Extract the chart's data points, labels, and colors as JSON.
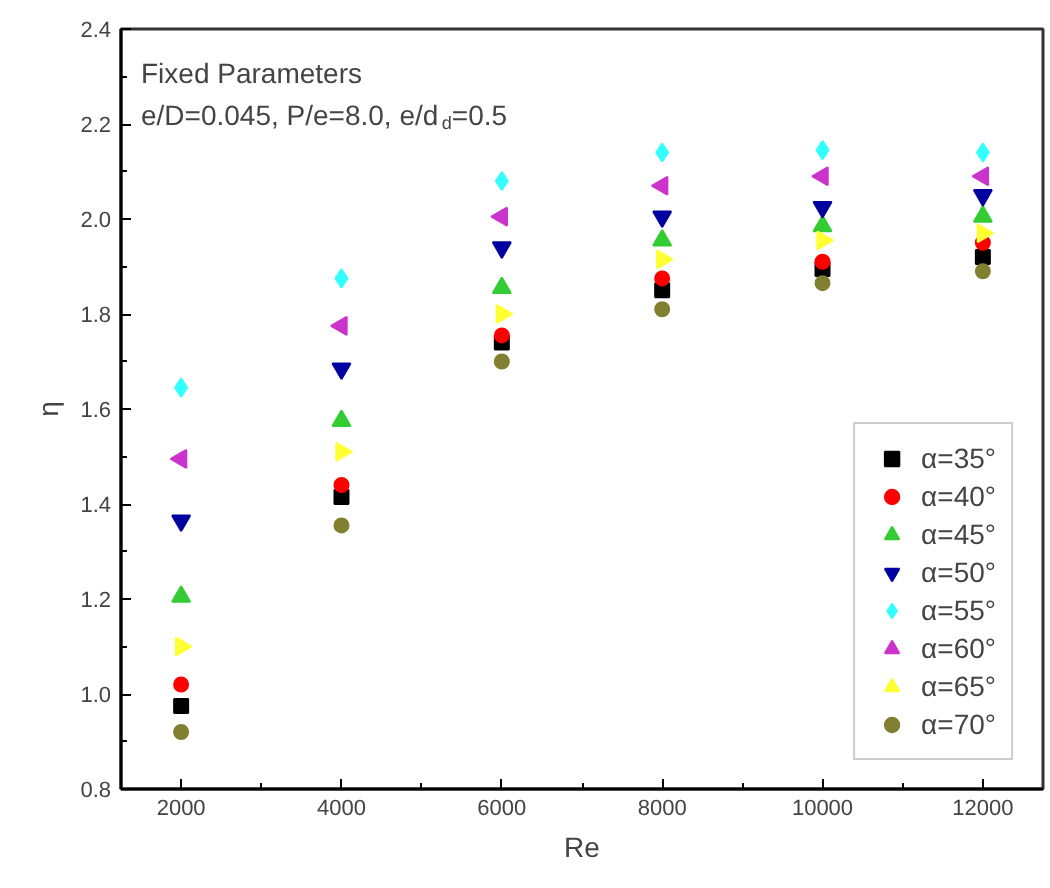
{
  "chart_data": {
    "type": "scatter",
    "xlabel": "Re",
    "ylabel": "η",
    "annotations": [
      "Fixed Parameters",
      "e/D=0.045, P/e=8.0, e/d$_{d}$=0.5"
    ],
    "x": [
      2000,
      4000,
      6000,
      8000,
      10000,
      12000
    ],
    "xlim": [
      1250,
      12750
    ],
    "xticks": [
      2000,
      4000,
      6000,
      8000,
      10000,
      12000
    ],
    "ylim": [
      0.8,
      2.4
    ],
    "yticks": [
      0.8,
      {
        "value": 1,
        "label": "1.0"
      },
      1.2,
      1.4,
      1.6,
      1.8,
      {
        "value": 2,
        "label": "2.0"
      },
      2.2,
      2.4
    ],
    "grid": false,
    "legend": "bottom right",
    "series": [
      {
        "name": "α=35°",
        "color": "#000000",
        "marker": "square",
        "values": [
          0.975,
          1.415,
          1.74,
          1.85,
          1.895,
          1.92
        ]
      },
      {
        "name": "α=40°",
        "color": "#ff0000",
        "marker": "circle",
        "values": [
          1.02,
          1.44,
          1.755,
          1.875,
          1.91,
          1.95
        ]
      },
      {
        "name": "α=45°",
        "color": "#33cc33",
        "marker": "triangle",
        "values": [
          1.205,
          1.575,
          1.855,
          1.955,
          1.985,
          2.005
        ]
      },
      {
        "name": "α=50°",
        "color": "#0000a0",
        "marker": "triangle_down",
        "values": [
          1.365,
          1.685,
          1.94,
          2.005,
          2.025,
          2.05
        ]
      },
      {
        "name": "α=55°",
        "color": "#33ffff",
        "marker": "diamond",
        "values": [
          1.645,
          1.875,
          2.08,
          2.14,
          2.145,
          2.14
        ]
      },
      {
        "name": "α=60°",
        "color": "#cc33cc",
        "marker": "triangle_left",
        "values": [
          1.495,
          1.775,
          2.005,
          2.07,
          2.09,
          2.09
        ]
      },
      {
        "name": "α=65°",
        "color": "#ffff33",
        "marker": "triangle_right",
        "values": [
          1.1,
          1.51,
          1.8,
          1.915,
          1.955,
          1.97
        ]
      },
      {
        "name": "α=70°",
        "color": "#808030",
        "marker": "circle",
        "values": [
          0.92,
          1.355,
          1.7,
          1.81,
          1.865,
          1.89
        ]
      }
    ]
  }
}
